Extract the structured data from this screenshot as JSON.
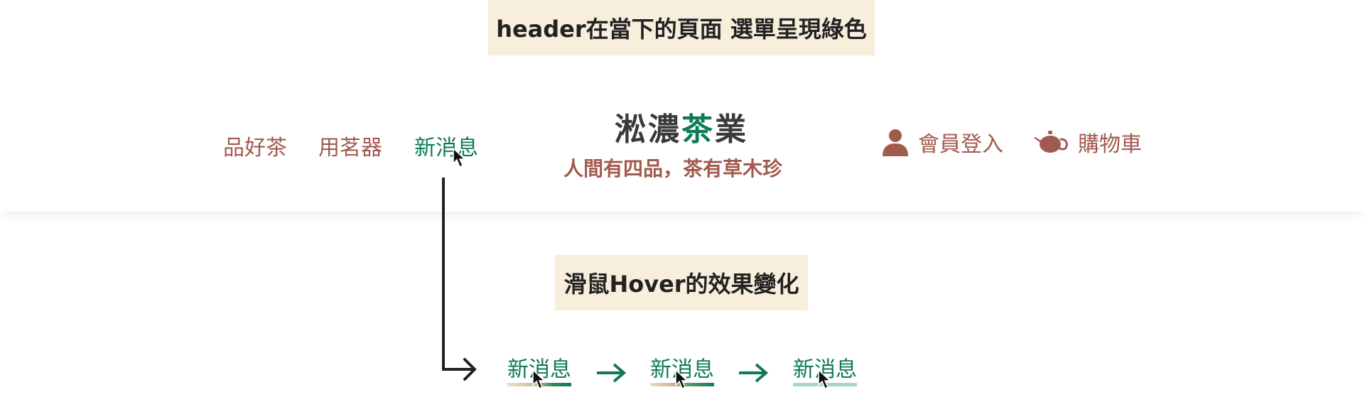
{
  "notes": {
    "top": "header在當下的頁面 選單呈現綠色",
    "hover": "滑鼠Hover的效果變化"
  },
  "header": {
    "nav": [
      "品好茶",
      "用茗器",
      "新消息"
    ],
    "active_index": 2,
    "brand": {
      "part1": "淞濃",
      "highlight": "茶",
      "part2": "業"
    },
    "slogan": "人間有四品，茶有草木珍",
    "member_label": "會員登入",
    "cart_label": "購物車"
  },
  "hover_demo": {
    "label": "新消息",
    "states": [
      "hover-start",
      "hover-mid",
      "hover-end"
    ]
  },
  "colors": {
    "active_green": "#0f7a55",
    "nav_brown": "#a15a4f",
    "note_bg": "#f7eedc"
  }
}
